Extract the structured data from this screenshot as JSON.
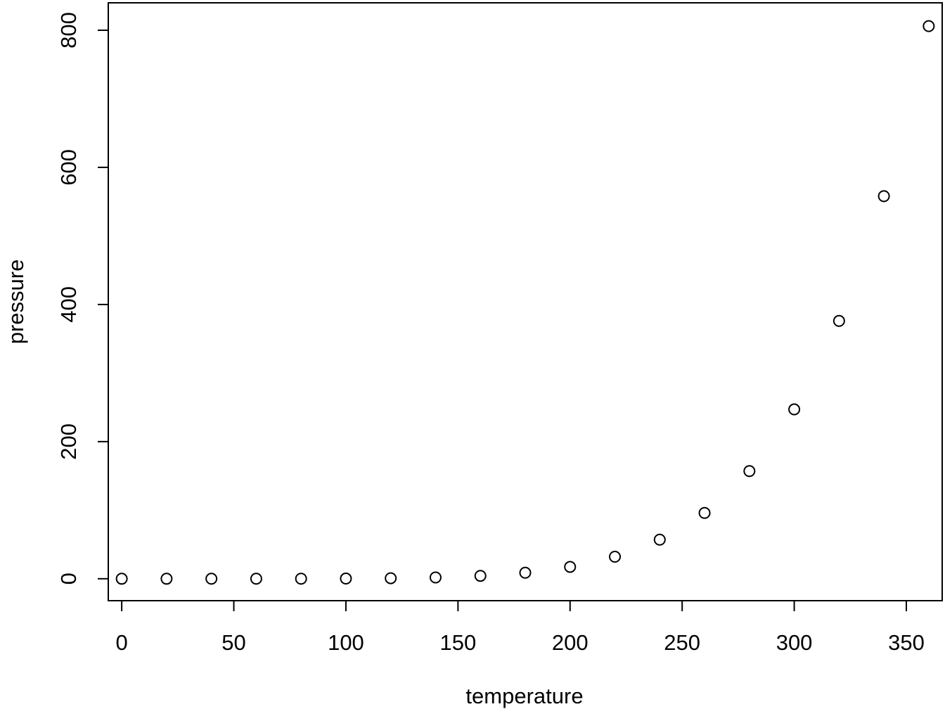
{
  "chart_data": {
    "type": "scatter",
    "title": "",
    "xlabel": "temperature",
    "ylabel": "pressure",
    "xlim": [
      -6,
      366
    ],
    "ylim": [
      -32,
      840
    ],
    "x_ticks": [
      "0",
      "50",
      "100",
      "150",
      "200",
      "250",
      "300",
      "350"
    ],
    "y_ticks": [
      "0",
      "200",
      "400",
      "600",
      "800"
    ],
    "grid": false,
    "legend": "none",
    "marker": "open-circle",
    "x": [
      0,
      20,
      40,
      60,
      80,
      100,
      120,
      140,
      160,
      180,
      200,
      220,
      240,
      260,
      280,
      300,
      320,
      340,
      360
    ],
    "y": [
      0.0002,
      0.0012,
      0.006,
      0.03,
      0.09,
      0.27,
      0.75,
      1.85,
      4.2,
      8.8,
      17.3,
      32.1,
      57,
      96,
      157,
      247,
      376,
      558,
      806
    ],
    "colors": {
      "marker_stroke": "#000000",
      "axis": "#000000",
      "background": "#ffffff"
    }
  }
}
